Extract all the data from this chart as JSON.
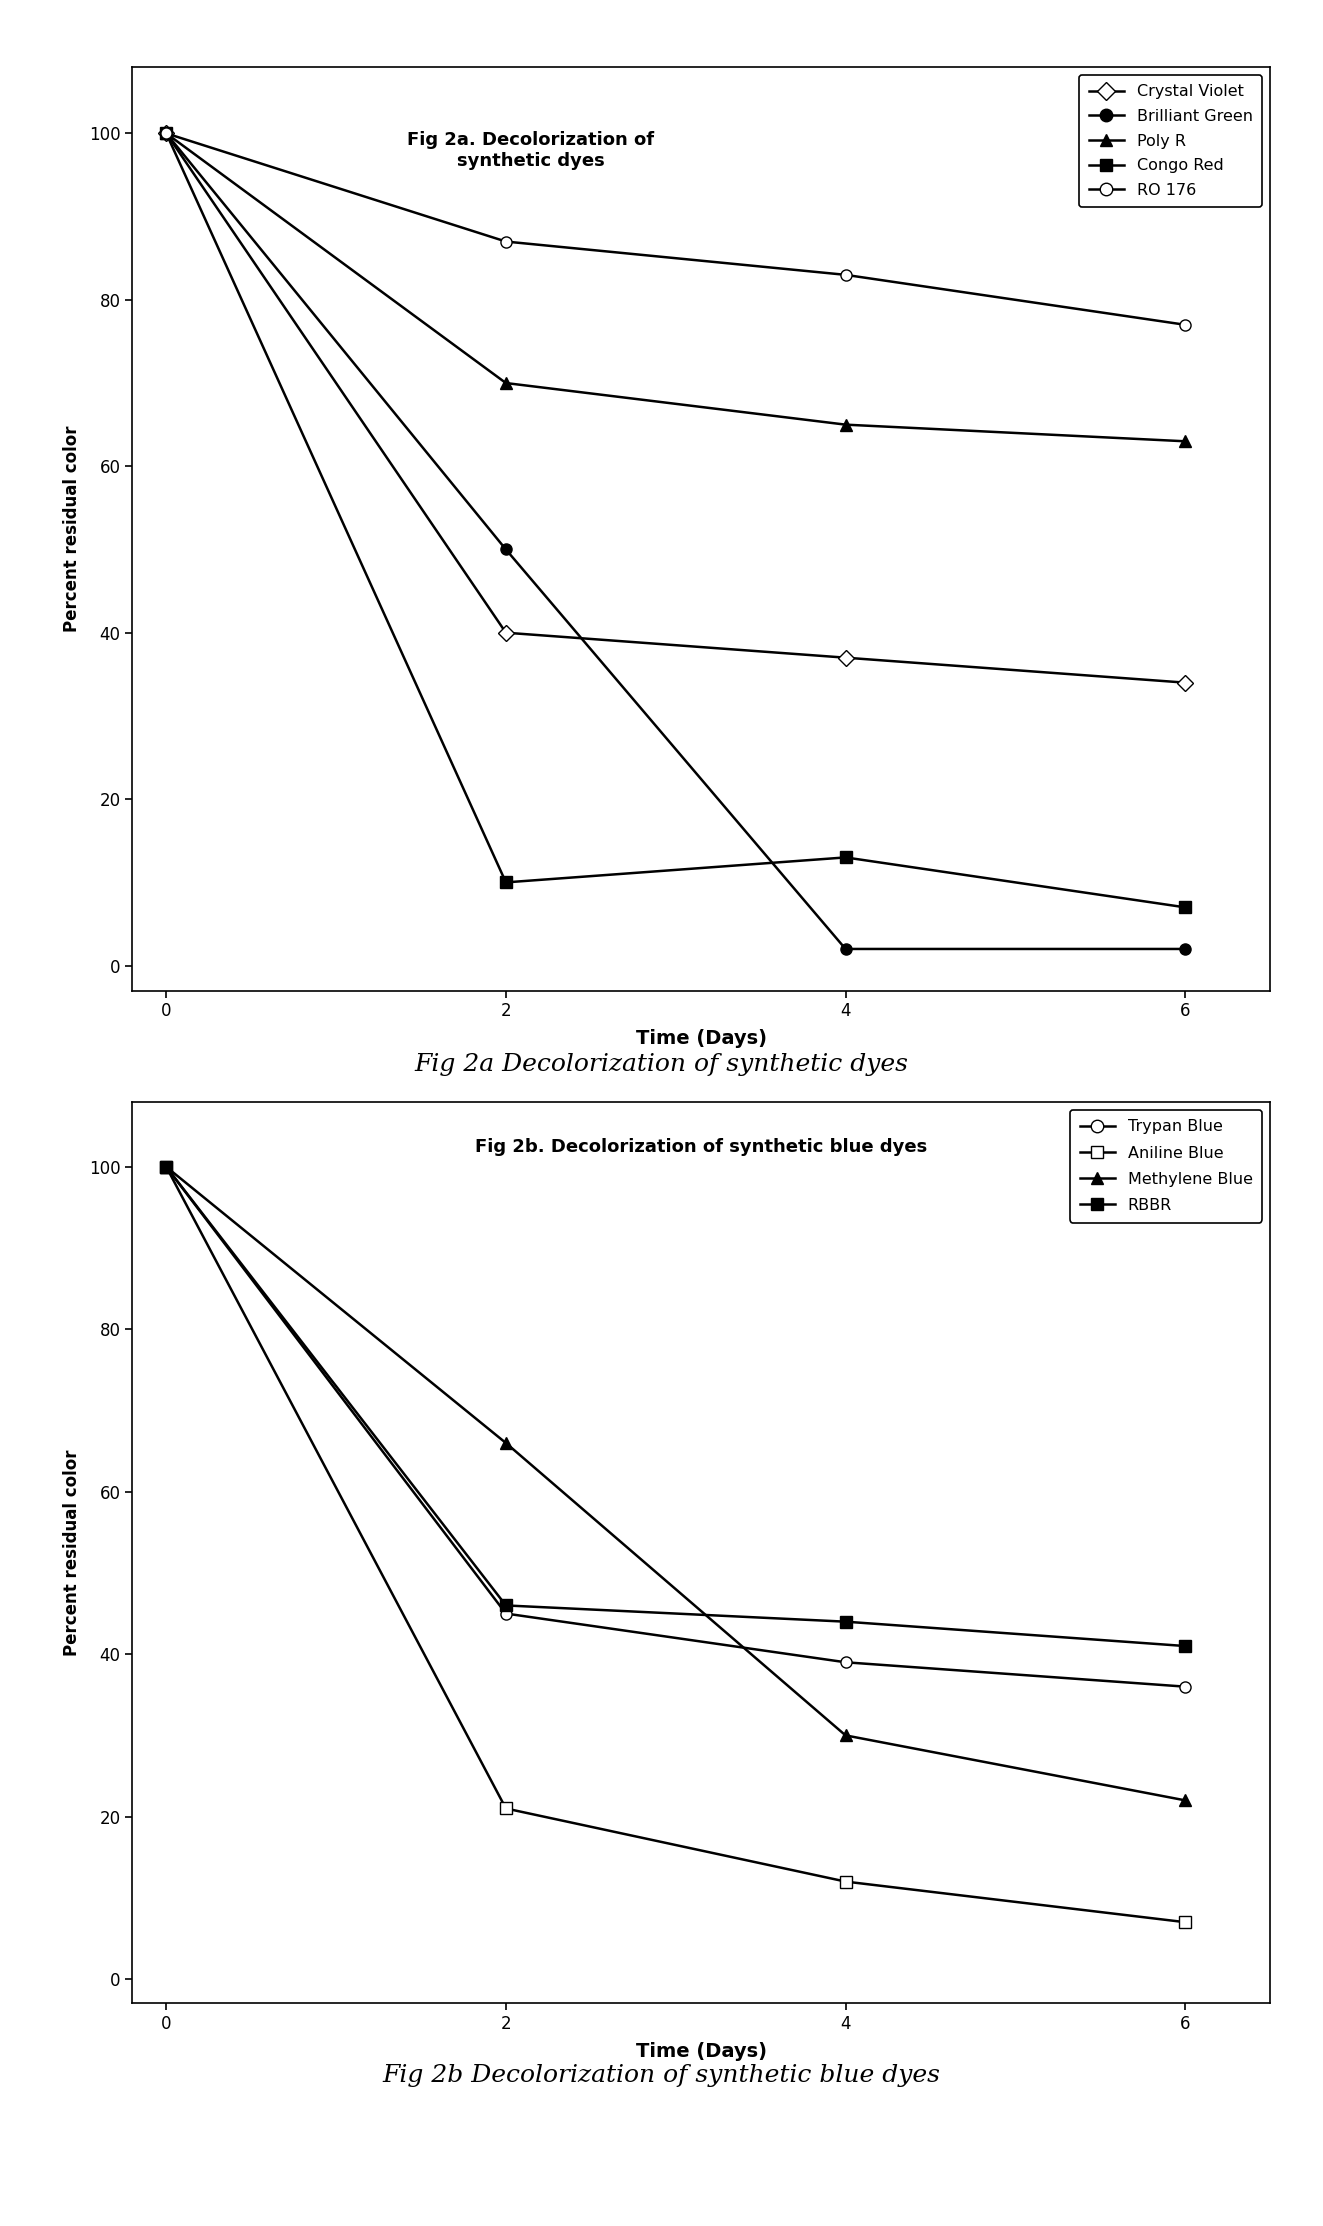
{
  "fig2a": {
    "title": "Fig 2a. Decolorization of\nsynthetic dyes",
    "xlabel": "Time (Days)",
    "ylabel": "Percent residual color",
    "x": [
      0,
      2,
      4,
      6
    ],
    "series": [
      {
        "label": "Crystal Violet",
        "y": [
          100,
          40,
          37,
          34
        ],
        "marker": "D",
        "markerfacecolor": "white",
        "markeredgecolor": "black",
        "color": "black",
        "markersize": 8,
        "linewidth": 1.8
      },
      {
        "label": "Brilliant Green",
        "y": [
          100,
          50,
          2,
          2
        ],
        "marker": "o",
        "markerfacecolor": "black",
        "markeredgecolor": "black",
        "color": "black",
        "markersize": 8,
        "linewidth": 1.8
      },
      {
        "label": "Poly R",
        "y": [
          100,
          70,
          65,
          63
        ],
        "marker": "^",
        "markerfacecolor": "black",
        "markeredgecolor": "black",
        "color": "black",
        "markersize": 8,
        "linewidth": 1.8
      },
      {
        "label": "Congo Red",
        "y": [
          100,
          10,
          13,
          7
        ],
        "marker": "s",
        "markerfacecolor": "black",
        "markeredgecolor": "black",
        "color": "black",
        "markersize": 8,
        "linewidth": 1.8
      },
      {
        "label": "RO 176",
        "y": [
          100,
          87,
          83,
          77
        ],
        "marker": "o",
        "markerfacecolor": "white",
        "markeredgecolor": "black",
        "color": "black",
        "markersize": 8,
        "linewidth": 1.8
      }
    ],
    "xlim": [
      -0.2,
      6.5
    ],
    "ylim": [
      -3,
      108
    ],
    "xticks": [
      0,
      2,
      4,
      6
    ],
    "yticks": [
      0,
      20,
      40,
      60,
      80,
      100
    ]
  },
  "fig2b": {
    "title": "Fig 2b. Decolorization of synthetic blue dyes",
    "xlabel": "Time (Days)",
    "ylabel": "Percent residual color",
    "x": [
      0,
      2,
      4,
      6
    ],
    "series": [
      {
        "label": "Trypan Blue",
        "y": [
          100,
          45,
          39,
          36
        ],
        "marker": "o",
        "markerfacecolor": "white",
        "markeredgecolor": "black",
        "color": "black",
        "markersize": 8,
        "linewidth": 1.8
      },
      {
        "label": "Aniline Blue",
        "y": [
          100,
          21,
          12,
          7
        ],
        "marker": "s",
        "markerfacecolor": "white",
        "markeredgecolor": "black",
        "color": "black",
        "markersize": 8,
        "linewidth": 1.8
      },
      {
        "label": "Methylene Blue",
        "y": [
          100,
          66,
          30,
          22
        ],
        "marker": "^",
        "markerfacecolor": "black",
        "markeredgecolor": "black",
        "color": "black",
        "markersize": 8,
        "linewidth": 1.8
      },
      {
        "label": "RBBR",
        "y": [
          100,
          46,
          44,
          41
        ],
        "marker": "s",
        "markerfacecolor": "black",
        "markeredgecolor": "black",
        "color": "black",
        "markersize": 8,
        "linewidth": 1.8
      }
    ],
    "xlim": [
      -0.2,
      6.5
    ],
    "ylim": [
      -3,
      108
    ],
    "xticks": [
      0,
      2,
      4,
      6
    ],
    "yticks": [
      0,
      20,
      40,
      60,
      80,
      100
    ]
  },
  "caption2a": "Fig 2a Decolorization of synthetic dyes",
  "caption2b": "Fig 2b Decolorization of synthetic blue dyes",
  "background_color": "#ffffff"
}
